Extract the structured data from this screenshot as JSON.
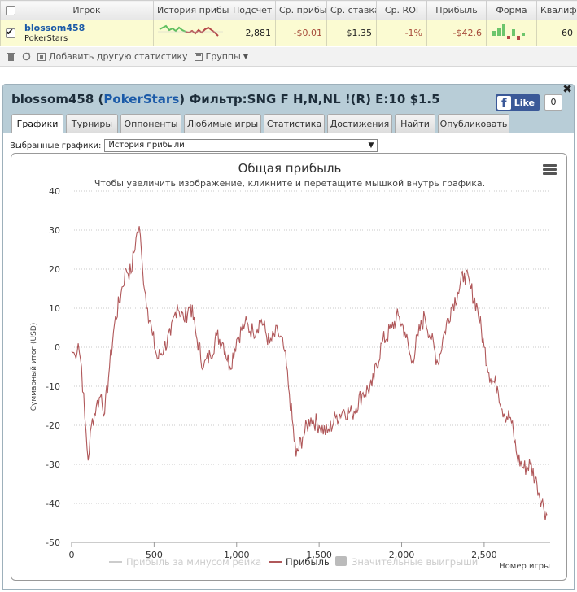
{
  "table": {
    "headers": [
      "",
      "Игрок",
      "История прибыл",
      "Подсчет",
      "Ср. прибы.",
      "Ср. ставка",
      "Ср. ROI",
      "Прибыль",
      "Форма",
      "Квалиф"
    ],
    "row": {
      "player": "blossom458",
      "site": "PokerStars",
      "count": "2,881",
      "avg_profit": "-$0.01",
      "avg_stake": "$1.35",
      "avg_roi": "-1%",
      "profit": "-$42.6",
      "qualifier": "60"
    }
  },
  "toolbar": {
    "add_stats": "Добавить другую статистику",
    "groups": "Группы"
  },
  "panel": {
    "title_player": "blossom458",
    "title_site": "PokerStars",
    "title_filter": "Фильтр:SNG F H,N,NL !(R) E:10 $1.5",
    "fb_like": "Like",
    "fb_count": "0",
    "tabs": [
      "Графики",
      "Турниры",
      "Оппоненты",
      "Любимые игры",
      "Статистика",
      "Достижения",
      "Найти",
      "Опубликовать"
    ],
    "select_label": "Выбранные графики:",
    "select_value": "История прибыли"
  },
  "colors": {
    "profit_line": "#b0585a",
    "rake_line": "#cccccc",
    "big_wins": "#bbbbbb",
    "accent_link": "#1b5aa8",
    "header_bg": "#b8cdd7",
    "row_highlight": "#fbfbd2"
  },
  "chart_data": {
    "type": "line",
    "title": "Общая прибыль",
    "subtitle": "Чтобы увеличить изображение, кликните и перетащите мышкой внутрь графика.",
    "xlabel": "Номер игры",
    "ylabel": "Суммарный итог (USD)",
    "xlim": [
      0,
      2900
    ],
    "ylim": [
      -50,
      40
    ],
    "x_ticks": [
      0,
      500,
      1000,
      1500,
      2000,
      2500
    ],
    "x_tick_labels": [
      "0",
      "500",
      "1,000",
      "1,500",
      "2,000",
      "2,500"
    ],
    "y_ticks": [
      40,
      30,
      20,
      10,
      0,
      -10,
      -20,
      -30,
      -40,
      -50
    ],
    "grid": "horizontal-dotted",
    "legend": [
      "Прибыль за минусом рейка",
      "Прибыль",
      "Значительные выигрыши"
    ],
    "legend_position": "bottom",
    "series": [
      {
        "name": "Прибыль",
        "x": [
          0,
          20,
          40,
          60,
          80,
          100,
          120,
          150,
          180,
          200,
          230,
          260,
          300,
          330,
          360,
          390,
          410,
          430,
          460,
          490,
          520,
          560,
          600,
          640,
          680,
          720,
          760,
          800,
          840,
          880,
          920,
          960,
          1000,
          1050,
          1100,
          1150,
          1200,
          1250,
          1290,
          1320,
          1360,
          1400,
          1450,
          1500,
          1550,
          1600,
          1650,
          1700,
          1760,
          1820,
          1880,
          1940,
          1980,
          2020,
          2060,
          2100,
          2140,
          2180,
          2220,
          2260,
          2300,
          2340,
          2380,
          2420,
          2460,
          2500,
          2540,
          2580,
          2620,
          2660,
          2700,
          2740,
          2780,
          2820,
          2860,
          2881
        ],
        "y": [
          -1,
          -2,
          1,
          -5,
          -18,
          -29,
          -20,
          -15,
          -12,
          -17,
          -5,
          6,
          14,
          20,
          19,
          28,
          31,
          20,
          10,
          3,
          -3,
          0,
          3,
          11,
          7,
          11,
          2,
          -5,
          -2,
          3,
          1,
          -5,
          2,
          6,
          4,
          7,
          1,
          4,
          -1,
          -12,
          -28,
          -23,
          -18,
          -20,
          -22,
          -18,
          -16,
          -17,
          -12,
          -10,
          1,
          5,
          8,
          4,
          -4,
          3,
          8,
          2,
          -4,
          4,
          10,
          14,
          19,
          15,
          10,
          0,
          -8,
          -10,
          -17,
          -18,
          -28,
          -31,
          -30,
          -35,
          -41,
          -43
        ]
      }
    ]
  }
}
